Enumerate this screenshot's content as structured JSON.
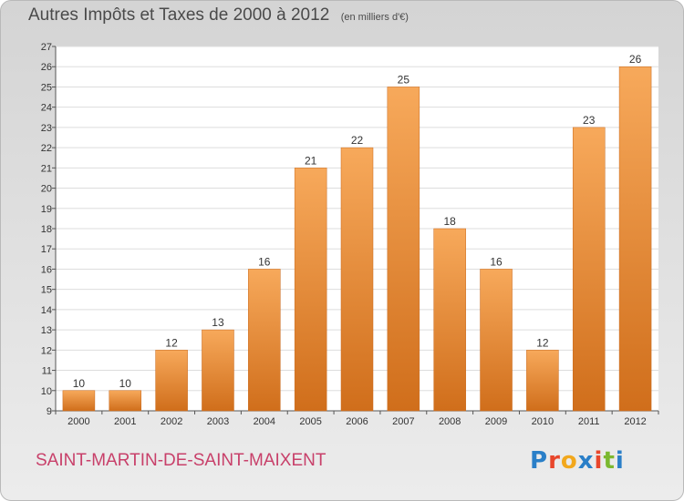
{
  "title": "Autres Impôts et Taxes de 2000 à 2012",
  "unit": "(en milliers d'€)",
  "commune": "SAINT-MARTIN-DE-SAINT-MAIXENT",
  "logo": {
    "text": "Proxiti",
    "letters": [
      "P",
      "r",
      "o",
      "x",
      "i",
      "t",
      "i"
    ],
    "colors": [
      "#2a7fc8",
      "#e8462b",
      "#f2a81d",
      "#2a7fc8",
      "#e8462b",
      "#7cb82f",
      "#2a7fc8"
    ]
  },
  "colors": {
    "bar_top": "#f7a95b",
    "bar_bottom": "#d06e1b",
    "plot_bg": "#ffffff",
    "grid": "#dddddd",
    "commune": "#c8406a"
  },
  "chart_data": {
    "type": "bar",
    "categories": [
      "2000",
      "2001",
      "2002",
      "2003",
      "2004",
      "2005",
      "2006",
      "2007",
      "2008",
      "2009",
      "2010",
      "2011",
      "2012"
    ],
    "values": [
      10,
      10,
      12,
      13,
      16,
      21,
      22,
      25,
      18,
      16,
      12,
      23,
      26
    ],
    "ylim": [
      9,
      27
    ],
    "yticks": [
      9,
      10,
      11,
      12,
      13,
      14,
      15,
      16,
      17,
      18,
      19,
      20,
      21,
      22,
      23,
      24,
      25,
      26,
      27
    ],
    "grid": true,
    "data_labels": true,
    "legend": "none"
  }
}
